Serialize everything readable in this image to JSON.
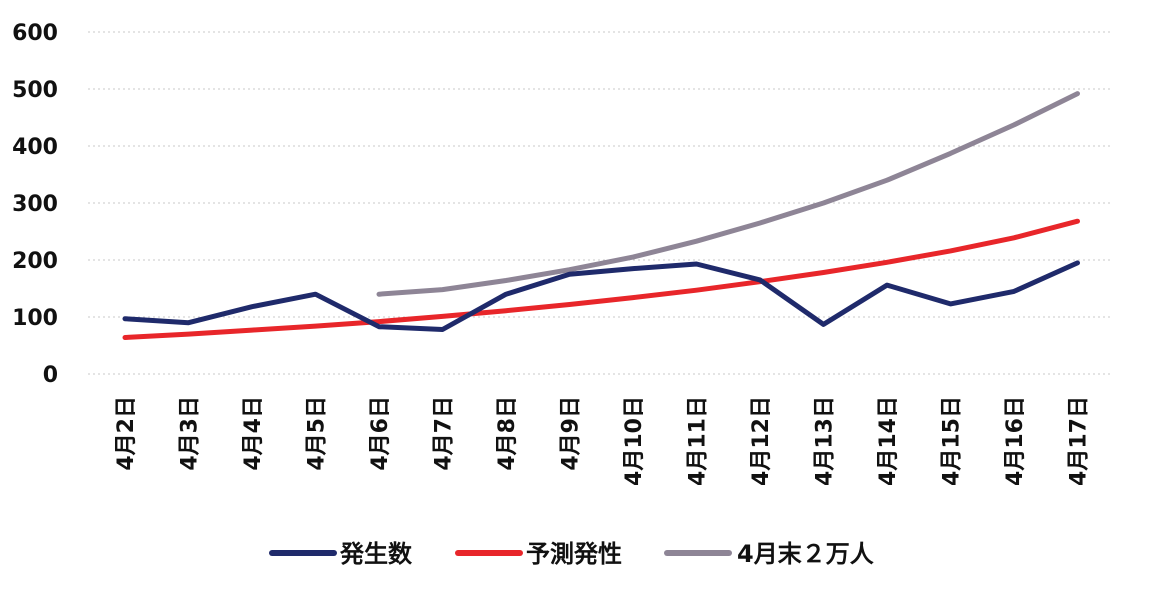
{
  "chart_data": {
    "type": "line",
    "categories": [
      "4月2日",
      "4月3日",
      "4月4日",
      "4月5日",
      "4月6日",
      "4月7日",
      "4月8日",
      "4月9日",
      "4月10日",
      "4月11日",
      "4月12日",
      "4月13日",
      "4月14日",
      "4月15日",
      "4月16日",
      "4月17日"
    ],
    "series": [
      {
        "name": "発生数",
        "color": "#1f2a6b",
        "values": [
          97,
          90,
          118,
          140,
          83,
          78,
          140,
          175,
          185,
          193,
          165,
          87,
          156,
          123,
          145,
          195
        ]
      },
      {
        "name": "予測発性",
        "color": "#e8262a",
        "values": [
          64,
          70,
          77,
          84,
          92,
          101,
          111,
          122,
          134,
          147,
          162,
          178,
          196,
          216,
          239,
          268
        ]
      },
      {
        "name": "4月末２万人",
        "color": "#8e8596",
        "values": [
          null,
          null,
          null,
          null,
          140,
          148,
          164,
          183,
          205,
          233,
          265,
          300,
          340,
          387,
          437,
          492
        ]
      }
    ],
    "yticks": [
      0,
      100,
      200,
      300,
      400,
      500,
      600
    ],
    "ylim": [
      0,
      600
    ],
    "grid": true,
    "legend_position": "bottom"
  }
}
